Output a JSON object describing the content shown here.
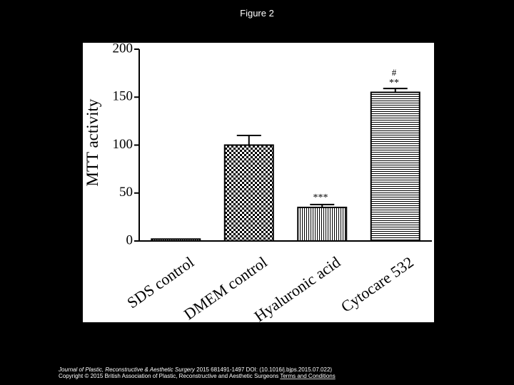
{
  "page_title": "Figure 2",
  "chart_data": {
    "type": "bar",
    "ylabel": "MTT activity",
    "categories": [
      "SDS control",
      "DMEM control",
      "Hyaluronic acid",
      "Cytocare 532"
    ],
    "values": [
      2,
      100,
      35,
      155
    ],
    "errors": [
      null,
      10,
      3,
      4
    ],
    "annotations": [
      "***",
      "#",
      "**"
    ],
    "ylim": [
      0,
      200
    ],
    "yticks": [
      0,
      50,
      100,
      150,
      200
    ]
  },
  "footer": {
    "journal": "Journal of Plastic, Reconstructive & Aesthetic Surgery",
    "citation": "2015 681491-1497 DOI: (10.1016/j.bjps.2015.07.022)",
    "copyright": "Copyright © 2015 British Association of Plastic, Reconstructive and Aesthetic Surgeons",
    "link": "Terms and Conditions"
  }
}
